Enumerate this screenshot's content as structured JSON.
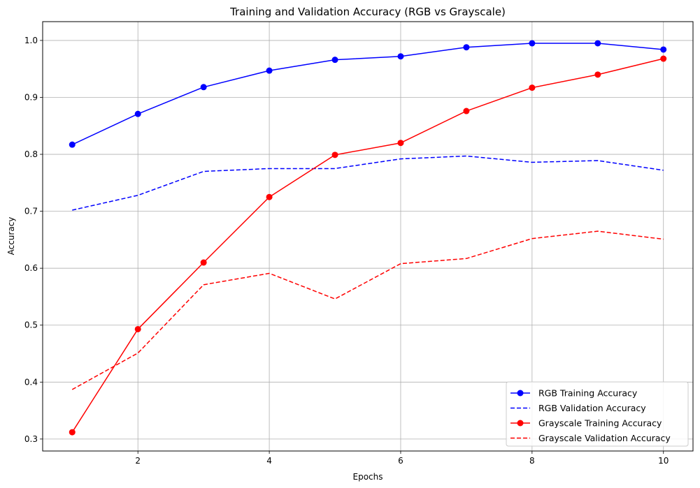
{
  "chart_data": {
    "type": "line",
    "title": "Training and Validation Accuracy (RGB vs Grayscale)",
    "xlabel": "Epochs",
    "ylabel": "Accuracy",
    "xlim": [
      0.55,
      10.45
    ],
    "ylim": [
      0.279,
      1.033
    ],
    "xticks": [
      2,
      4,
      6,
      8,
      10
    ],
    "yticks": [
      0.3,
      0.4,
      0.5,
      0.6,
      0.7,
      0.8,
      0.9,
      1.0
    ],
    "xtick_labels": [
      "2",
      "4",
      "6",
      "8",
      "10"
    ],
    "ytick_labels": [
      "0.3",
      "0.4",
      "0.5",
      "0.6",
      "0.7",
      "0.8",
      "0.9",
      "1.0"
    ],
    "grid": true,
    "legend_position": "lower-right",
    "x": [
      1,
      2,
      3,
      4,
      5,
      6,
      7,
      8,
      9,
      10
    ],
    "series": [
      {
        "name": "RGB Training Accuracy",
        "color": "#0000ff",
        "style": "solid",
        "marker": "circle",
        "values": [
          0.817,
          0.871,
          0.918,
          0.947,
          0.966,
          0.972,
          0.988,
          0.995,
          0.995,
          0.984
        ]
      },
      {
        "name": "RGB Validation Accuracy",
        "color": "#0000ff",
        "style": "dashed",
        "marker": "none",
        "values": [
          0.702,
          0.728,
          0.77,
          0.775,
          0.775,
          0.792,
          0.797,
          0.786,
          0.789,
          0.772
        ]
      },
      {
        "name": "Grayscale Training Accuracy",
        "color": "#ff0000",
        "style": "solid",
        "marker": "circle",
        "values": [
          0.312,
          0.493,
          0.61,
          0.725,
          0.799,
          0.82,
          0.876,
          0.917,
          0.94,
          0.968
        ]
      },
      {
        "name": "Grayscale Validation Accuracy",
        "color": "#ff0000",
        "style": "dashed",
        "marker": "none",
        "values": [
          0.387,
          0.451,
          0.571,
          0.591,
          0.546,
          0.608,
          0.617,
          0.652,
          0.665,
          0.651
        ]
      }
    ]
  }
}
